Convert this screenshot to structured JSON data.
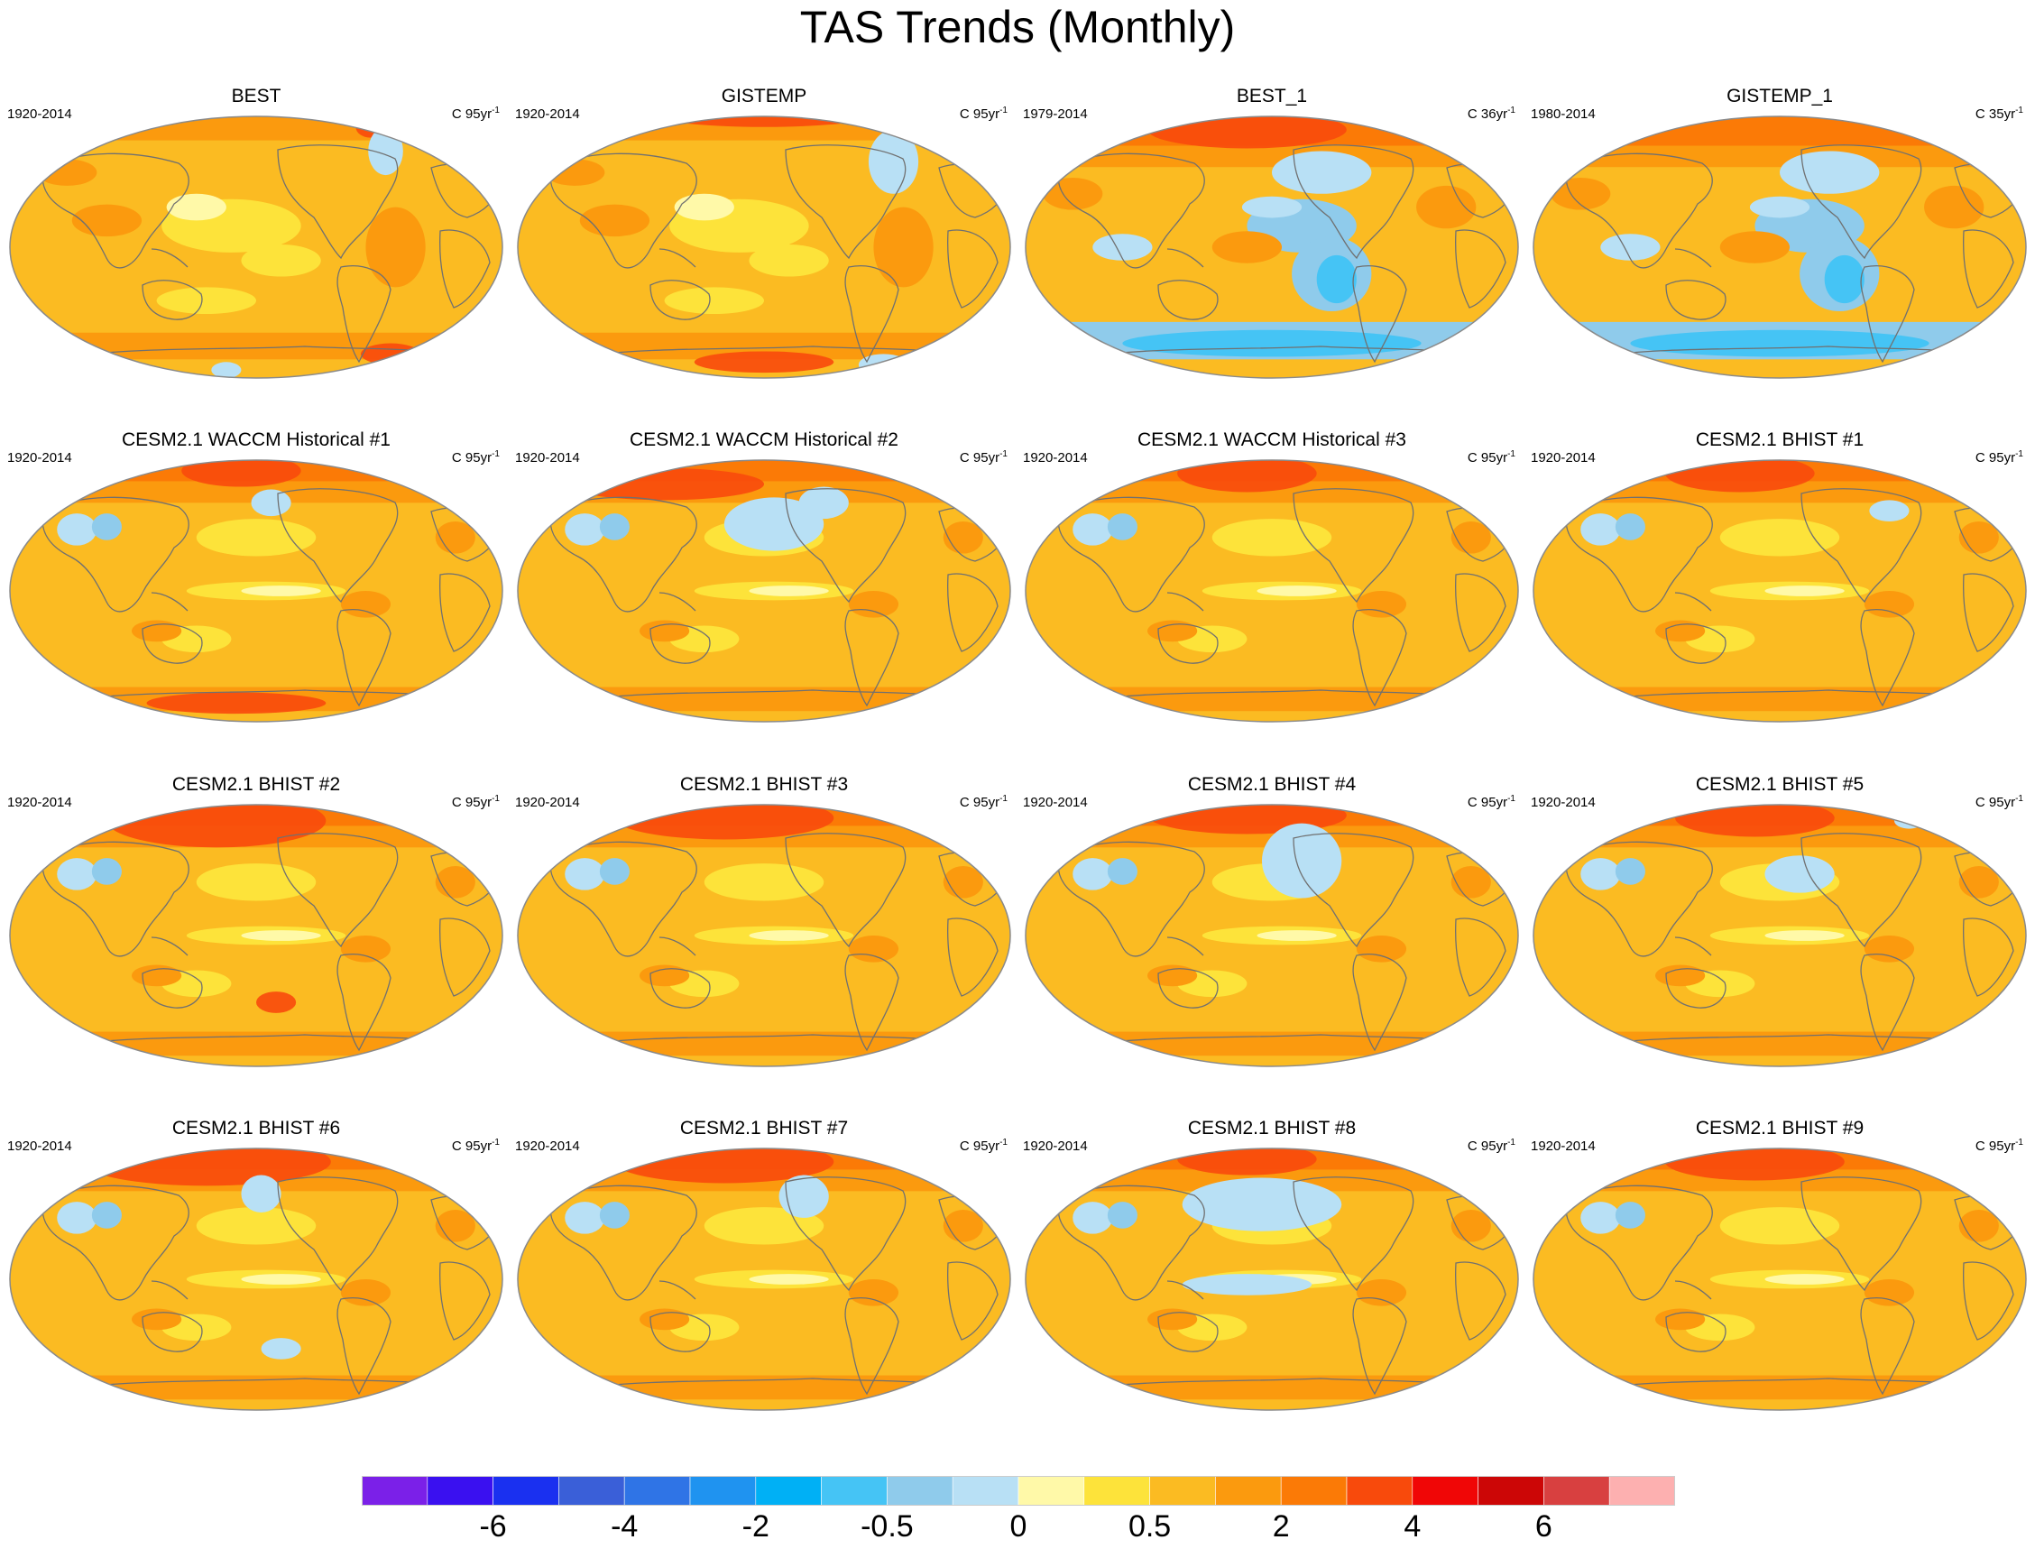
{
  "title": "TAS Trends (Monthly)",
  "units_prefix": "C",
  "units_suffix": "yr",
  "units_exponent": "-1",
  "panels": [
    {
      "title": "BEST",
      "period": "1920-2014",
      "years": "95",
      "pattern": "obs_long",
      "cold_spots": [
        [
          0.76,
          0.14,
          0.035,
          0.09
        ],
        [
          0.44,
          0.96,
          0.03,
          0.03
        ]
      ],
      "warm_spots": [
        [
          0.73,
          0.05,
          0.03,
          0.04
        ],
        [
          0.77,
          0.9,
          0.06,
          0.04
        ]
      ]
    },
    {
      "title": "GISTEMP",
      "period": "1920-2014",
      "years": "95",
      "pattern": "obs_long",
      "cold_spots": [
        [
          0.76,
          0.18,
          0.05,
          0.12
        ],
        [
          0.74,
          0.94,
          0.05,
          0.04
        ]
      ],
      "warm_spots": [
        [
          0.5,
          0.0,
          0.23,
          0.05
        ],
        [
          0.5,
          0.93,
          0.14,
          0.04
        ]
      ]
    },
    {
      "title": "BEST_1",
      "period": "1979-2014",
      "years": "36",
      "pattern": "obs_short",
      "cold_spots": [],
      "warm_spots": [
        [
          0.45,
          0.06,
          0.2,
          0.07
        ]
      ]
    },
    {
      "title": "GISTEMP_1",
      "period": "1980-2014",
      "years": "35",
      "pattern": "obs_short",
      "cold_spots": [],
      "warm_spots": []
    },
    {
      "title": "CESM2.1 WACCM Historical #1",
      "period": "1920-2014",
      "years": "95",
      "pattern": "model",
      "cold_spots": [
        [
          0.53,
          0.17,
          0.04,
          0.05
        ]
      ],
      "warm_spots": [
        [
          0.47,
          0.05,
          0.12,
          0.06
        ],
        [
          0.46,
          0.92,
          0.18,
          0.04
        ]
      ]
    },
    {
      "title": "CESM2.1 WACCM Historical #2",
      "period": "1920-2014",
      "years": "95",
      "pattern": "model",
      "cold_spots": [
        [
          0.52,
          0.25,
          0.1,
          0.1
        ],
        [
          0.62,
          0.17,
          0.05,
          0.06
        ]
      ],
      "warm_spots": [
        [
          0.3,
          0.1,
          0.2,
          0.06
        ]
      ]
    },
    {
      "title": "CESM2.1 WACCM Historical #3",
      "period": "1920-2014",
      "years": "95",
      "pattern": "model",
      "cold_spots": [],
      "warm_spots": [
        [
          0.45,
          0.06,
          0.14,
          0.07
        ]
      ]
    },
    {
      "title": "CESM2.1 BHIST #1",
      "period": "1920-2014",
      "years": "95",
      "pattern": "model",
      "cold_spots": [
        [
          0.72,
          0.2,
          0.04,
          0.04
        ]
      ],
      "warm_spots": [
        [
          0.42,
          0.06,
          0.15,
          0.07
        ]
      ]
    },
    {
      "title": "CESM2.1 BHIST #2",
      "period": "1920-2014",
      "years": "95",
      "pattern": "model",
      "cold_spots": [],
      "warm_spots": [
        [
          0.42,
          0.07,
          0.22,
          0.1
        ],
        [
          0.54,
          0.75,
          0.04,
          0.04
        ]
      ]
    },
    {
      "title": "CESM2.1 BHIST #3",
      "period": "1920-2014",
      "years": "95",
      "pattern": "model",
      "cold_spots": [],
      "warm_spots": [
        [
          0.42,
          0.06,
          0.22,
          0.08
        ]
      ]
    },
    {
      "title": "CESM2.1 BHIST #4",
      "period": "1920-2014",
      "years": "95",
      "pattern": "model",
      "cold_spots": [
        [
          0.56,
          0.22,
          0.08,
          0.14
        ]
      ],
      "warm_spots": [
        [
          0.45,
          0.05,
          0.2,
          0.07
        ]
      ]
    },
    {
      "title": "CESM2.1 BHIST #5",
      "period": "1920-2014",
      "years": "95",
      "pattern": "model",
      "cold_spots": [
        [
          0.54,
          0.27,
          0.07,
          0.07
        ],
        [
          0.76,
          0.07,
          0.03,
          0.03
        ]
      ],
      "warm_spots": [
        [
          0.45,
          0.06,
          0.16,
          0.07
        ]
      ]
    },
    {
      "title": "CESM2.1 BHIST #6",
      "period": "1920-2014",
      "years": "95",
      "pattern": "model",
      "cold_spots": [
        [
          0.51,
          0.18,
          0.04,
          0.07
        ],
        [
          0.55,
          0.76,
          0.04,
          0.04
        ]
      ],
      "warm_spots": [
        [
          0.4,
          0.06,
          0.25,
          0.09
        ]
      ]
    },
    {
      "title": "CESM2.1 BHIST #7",
      "period": "1920-2014",
      "years": "95",
      "pattern": "model",
      "cold_spots": [
        [
          0.58,
          0.19,
          0.05,
          0.08
        ]
      ],
      "warm_spots": [
        [
          0.42,
          0.06,
          0.22,
          0.08
        ]
      ]
    },
    {
      "title": "CESM2.1 BHIST #8",
      "period": "1920-2014",
      "years": "95",
      "pattern": "model",
      "cold_spots": [
        [
          0.48,
          0.22,
          0.16,
          0.1
        ],
        [
          0.45,
          0.52,
          0.13,
          0.04
        ]
      ],
      "warm_spots": [
        [
          0.45,
          0.05,
          0.14,
          0.06
        ]
      ]
    },
    {
      "title": "CESM2.1 BHIST #9",
      "period": "1920-2014",
      "years": "95",
      "pattern": "model",
      "cold_spots": [],
      "warm_spots": [
        [
          0.45,
          0.06,
          0.18,
          0.07
        ]
      ]
    }
  ],
  "colorbar": {
    "colors": [
      "#7b20e8",
      "#3a10f0",
      "#1a30f0",
      "#3a5fd8",
      "#2f74e6",
      "#1f93f0",
      "#00b0f5",
      "#45c4f5",
      "#8fcbeb",
      "#b8e0f5",
      "#fff9a8",
      "#fde33a",
      "#fbbb22",
      "#fb9a0e",
      "#fb7a06",
      "#f84a0c",
      "#f00606",
      "#cc0606",
      "#d84040",
      "#fdb0b0"
    ],
    "labels": [
      {
        "text": "-6",
        "boundary": 2
      },
      {
        "text": "-4",
        "boundary": 4
      },
      {
        "text": "-2",
        "boundary": 6
      },
      {
        "text": "-0.5",
        "boundary": 8
      },
      {
        "text": "0",
        "boundary": 10
      },
      {
        "text": "0.5",
        "boundary": 12
      },
      {
        "text": "2",
        "boundary": 14
      },
      {
        "text": "4",
        "boundary": 16
      },
      {
        "text": "6",
        "boundary": 18
      }
    ]
  }
}
